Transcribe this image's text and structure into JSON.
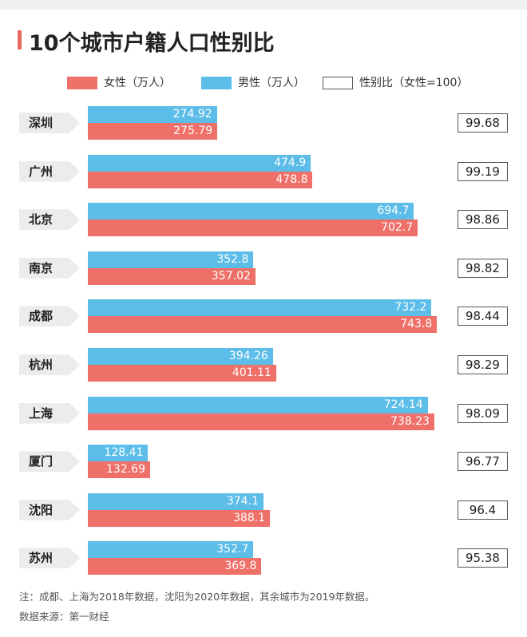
{
  "title": "10个城市户籍人口性别比",
  "legend": {
    "female": "女性（万人）",
    "male": "男性（万人）",
    "ratio": "性别比（女性=100）"
  },
  "colors": {
    "female": "#ef7069",
    "male": "#5bbde8",
    "accent": "#e8685f"
  },
  "chart_data": {
    "type": "bar",
    "orientation": "horizontal",
    "title": "10个城市户籍人口性别比",
    "categories": [
      "深圳",
      "广州",
      "北京",
      "南京",
      "成都",
      "杭州",
      "上海",
      "厦门",
      "沈阳",
      "苏州"
    ],
    "series": [
      {
        "name": "男性（万人）",
        "values": [
          274.92,
          474.9,
          694.7,
          352.8,
          732.2,
          394.26,
          724.14,
          128.41,
          374.1,
          352.7
        ]
      },
      {
        "name": "女性（万人）",
        "values": [
          275.79,
          478.8,
          702.7,
          357.02,
          743.8,
          401.11,
          738.23,
          132.69,
          388.1,
          369.8
        ]
      },
      {
        "name": "性别比（女性=100）",
        "values": [
          99.68,
          99.19,
          98.86,
          98.82,
          98.44,
          98.29,
          98.09,
          96.77,
          96.4,
          95.38
        ]
      }
    ],
    "value_labels": {
      "male": [
        "274.92",
        "474.9",
        "694.7",
        "352.8",
        "732.2",
        "394.26",
        "724.14",
        "128.41",
        "374.1",
        "352.7"
      ],
      "female": [
        "275.79",
        "478.8",
        "702.7",
        "357.02",
        "743.8",
        "401.11",
        "738.23",
        "132.69",
        "388.1",
        "369.8"
      ],
      "ratio": [
        "99.68",
        "99.19",
        "98.86",
        "98.82",
        "98.44",
        "98.29",
        "98.09",
        "96.77",
        "96.4",
        "95.38"
      ]
    },
    "xlim": [
      0,
      745
    ],
    "grid": false,
    "legend_position": "top"
  },
  "notes": {
    "note": "注：成都、上海为2018年数据，沈阳为2020年数据，其余城市为2019年数据。",
    "source": "数据来源：第一财经"
  }
}
